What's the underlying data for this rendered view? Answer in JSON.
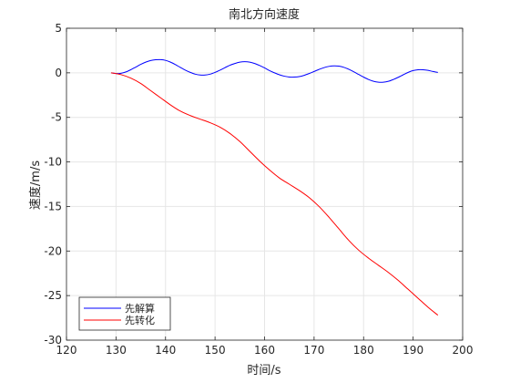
{
  "chart_data": {
    "type": "line",
    "title": "南北方向速度",
    "xlabel": "时间/s",
    "ylabel": "速度/m/s",
    "xlim": [
      120,
      200
    ],
    "ylim": [
      -30,
      5
    ],
    "xticks": [
      120,
      130,
      140,
      150,
      160,
      170,
      180,
      190,
      200
    ],
    "yticks": [
      5,
      0,
      -5,
      -10,
      -15,
      -20,
      -25,
      -30
    ],
    "grid": true,
    "legend_position": "bottom-left",
    "series": [
      {
        "name": "先解算",
        "color": "#0000ff",
        "x": [
          129,
          130,
          131,
          132,
          133,
          134,
          135,
          136,
          137,
          138,
          139,
          140,
          141,
          142,
          143,
          144,
          145,
          146,
          147,
          148,
          149,
          150,
          151,
          152,
          153,
          154,
          155,
          156,
          157,
          158,
          159,
          160,
          161,
          162,
          163,
          164,
          165,
          166,
          167,
          168,
          169,
          170,
          171,
          172,
          173,
          174,
          175,
          176,
          177,
          178,
          179,
          180,
          181,
          182,
          183,
          184,
          185,
          186,
          187,
          188,
          189,
          190,
          191,
          192,
          193,
          194,
          195
        ],
        "y": [
          0.0,
          -0.08,
          -0.05,
          0.1,
          0.35,
          0.65,
          0.95,
          1.2,
          1.38,
          1.47,
          1.48,
          1.4,
          1.2,
          0.92,
          0.6,
          0.3,
          0.05,
          -0.15,
          -0.25,
          -0.25,
          -0.15,
          0.05,
          0.3,
          0.58,
          0.85,
          1.05,
          1.2,
          1.25,
          1.2,
          1.05,
          0.82,
          0.55,
          0.25,
          0.0,
          -0.22,
          -0.38,
          -0.47,
          -0.48,
          -0.42,
          -0.28,
          -0.08,
          0.15,
          0.38,
          0.58,
          0.72,
          0.78,
          0.75,
          0.62,
          0.4,
          0.12,
          -0.18,
          -0.48,
          -0.75,
          -0.95,
          -1.05,
          -1.05,
          -0.95,
          -0.75,
          -0.5,
          -0.22,
          0.05,
          0.25,
          0.35,
          0.35,
          0.28,
          0.15,
          0.05
        ]
      },
      {
        "name": "先转化",
        "color": "#ff0000",
        "x": [
          129,
          131,
          133,
          135,
          137,
          139,
          141,
          143,
          145,
          147,
          149,
          151,
          153,
          155,
          157,
          159,
          161,
          163,
          165,
          167,
          169,
          171,
          173,
          175,
          177,
          179,
          181,
          183,
          185,
          187,
          189,
          191,
          193,
          195
        ],
        "y": [
          0.0,
          -0.2,
          -0.6,
          -1.2,
          -2.0,
          -2.8,
          -3.6,
          -4.3,
          -4.8,
          -5.2,
          -5.6,
          -6.1,
          -6.8,
          -7.7,
          -8.8,
          -9.9,
          -10.9,
          -11.8,
          -12.5,
          -13.2,
          -14.0,
          -15.0,
          -16.2,
          -17.5,
          -18.8,
          -19.9,
          -20.8,
          -21.6,
          -22.4,
          -23.3,
          -24.3,
          -25.3,
          -26.3,
          -27.2
        ]
      }
    ]
  }
}
